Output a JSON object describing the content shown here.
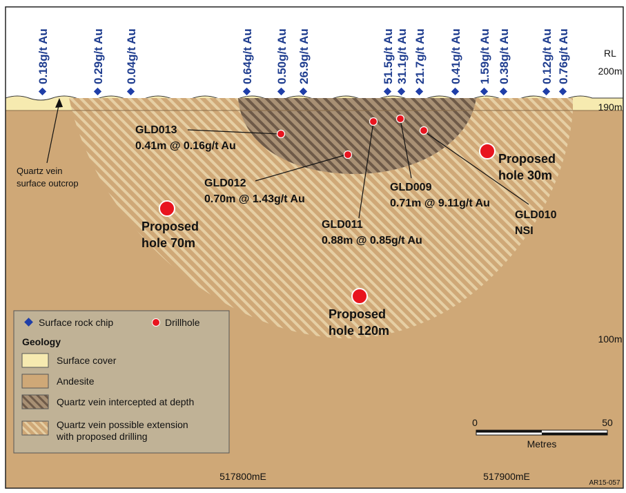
{
  "samples": [
    {
      "label": "0.18g/t Au"
    },
    {
      "label": "0.29g/t Au"
    },
    {
      "label": "0.04g/t Au"
    },
    {
      "label": "0.64g/t Au"
    },
    {
      "label": "0.50g/t Au"
    },
    {
      "label": "26.9g/t Au"
    },
    {
      "label": "51.5g/t Au"
    },
    {
      "label": "31.1g/t Au"
    },
    {
      "label": "21.7g/t Au"
    },
    {
      "label": "0.41g/t Au"
    },
    {
      "label": "1.59g/t Au"
    },
    {
      "label": "0.38g/t Au"
    },
    {
      "label": "0.12g/t Au"
    },
    {
      "label": "0.76g/t Au"
    }
  ],
  "rl": {
    "title": "RL",
    "levels": [
      "200m",
      "190m",
      "100m"
    ]
  },
  "drillholes": [
    {
      "name": "GLD013",
      "result": "0.41m @ 0.16g/t Au"
    },
    {
      "name": "GLD012",
      "result": "0.70m @ 1.43g/t Au"
    },
    {
      "name": "GLD011",
      "result": "0.88m @ 0.85g/t Au"
    },
    {
      "name": "GLD009",
      "result": "0.71m @ 9.11g/t Au"
    },
    {
      "name": "GLD010",
      "result": "NSI"
    }
  ],
  "proposed": [
    {
      "line1": "Proposed",
      "line2": "hole 70m"
    },
    {
      "line1": "Proposed",
      "line2": "hole 120m"
    },
    {
      "line1": "Proposed",
      "line2": "hole 30m"
    }
  ],
  "outcrop": {
    "line1": "Quartz vein",
    "line2": "surface outcrop"
  },
  "legend": {
    "rock_chip": "Surface rock chip",
    "drillhole": "Drillhole",
    "geology_title": "Geology",
    "items": [
      {
        "label": "Surface cover"
      },
      {
        "label": "Andesite"
      },
      {
        "label": "Quartz vein intercepted at depth"
      },
      {
        "label_line1": "Quartz vein possible extension",
        "label_line2": "with proposed drilling"
      }
    ]
  },
  "scale": {
    "min": "0",
    "max": "50",
    "unit": "Metres"
  },
  "eastings": [
    "517800mE",
    "517900mE"
  ],
  "ref_code": "AR15-057",
  "colors": {
    "andesite": "#cfa877",
    "surface_cover": "#f6eab0",
    "vein_dark_hatch": "#6e5a48",
    "vein_light_hatch": "#e6cfa4",
    "sample_text": "#1f3d8f",
    "rock_chip_marker": "#1f3ea8",
    "drillhole_marker": "#e8141e",
    "legend_bg": "#c0b296"
  }
}
